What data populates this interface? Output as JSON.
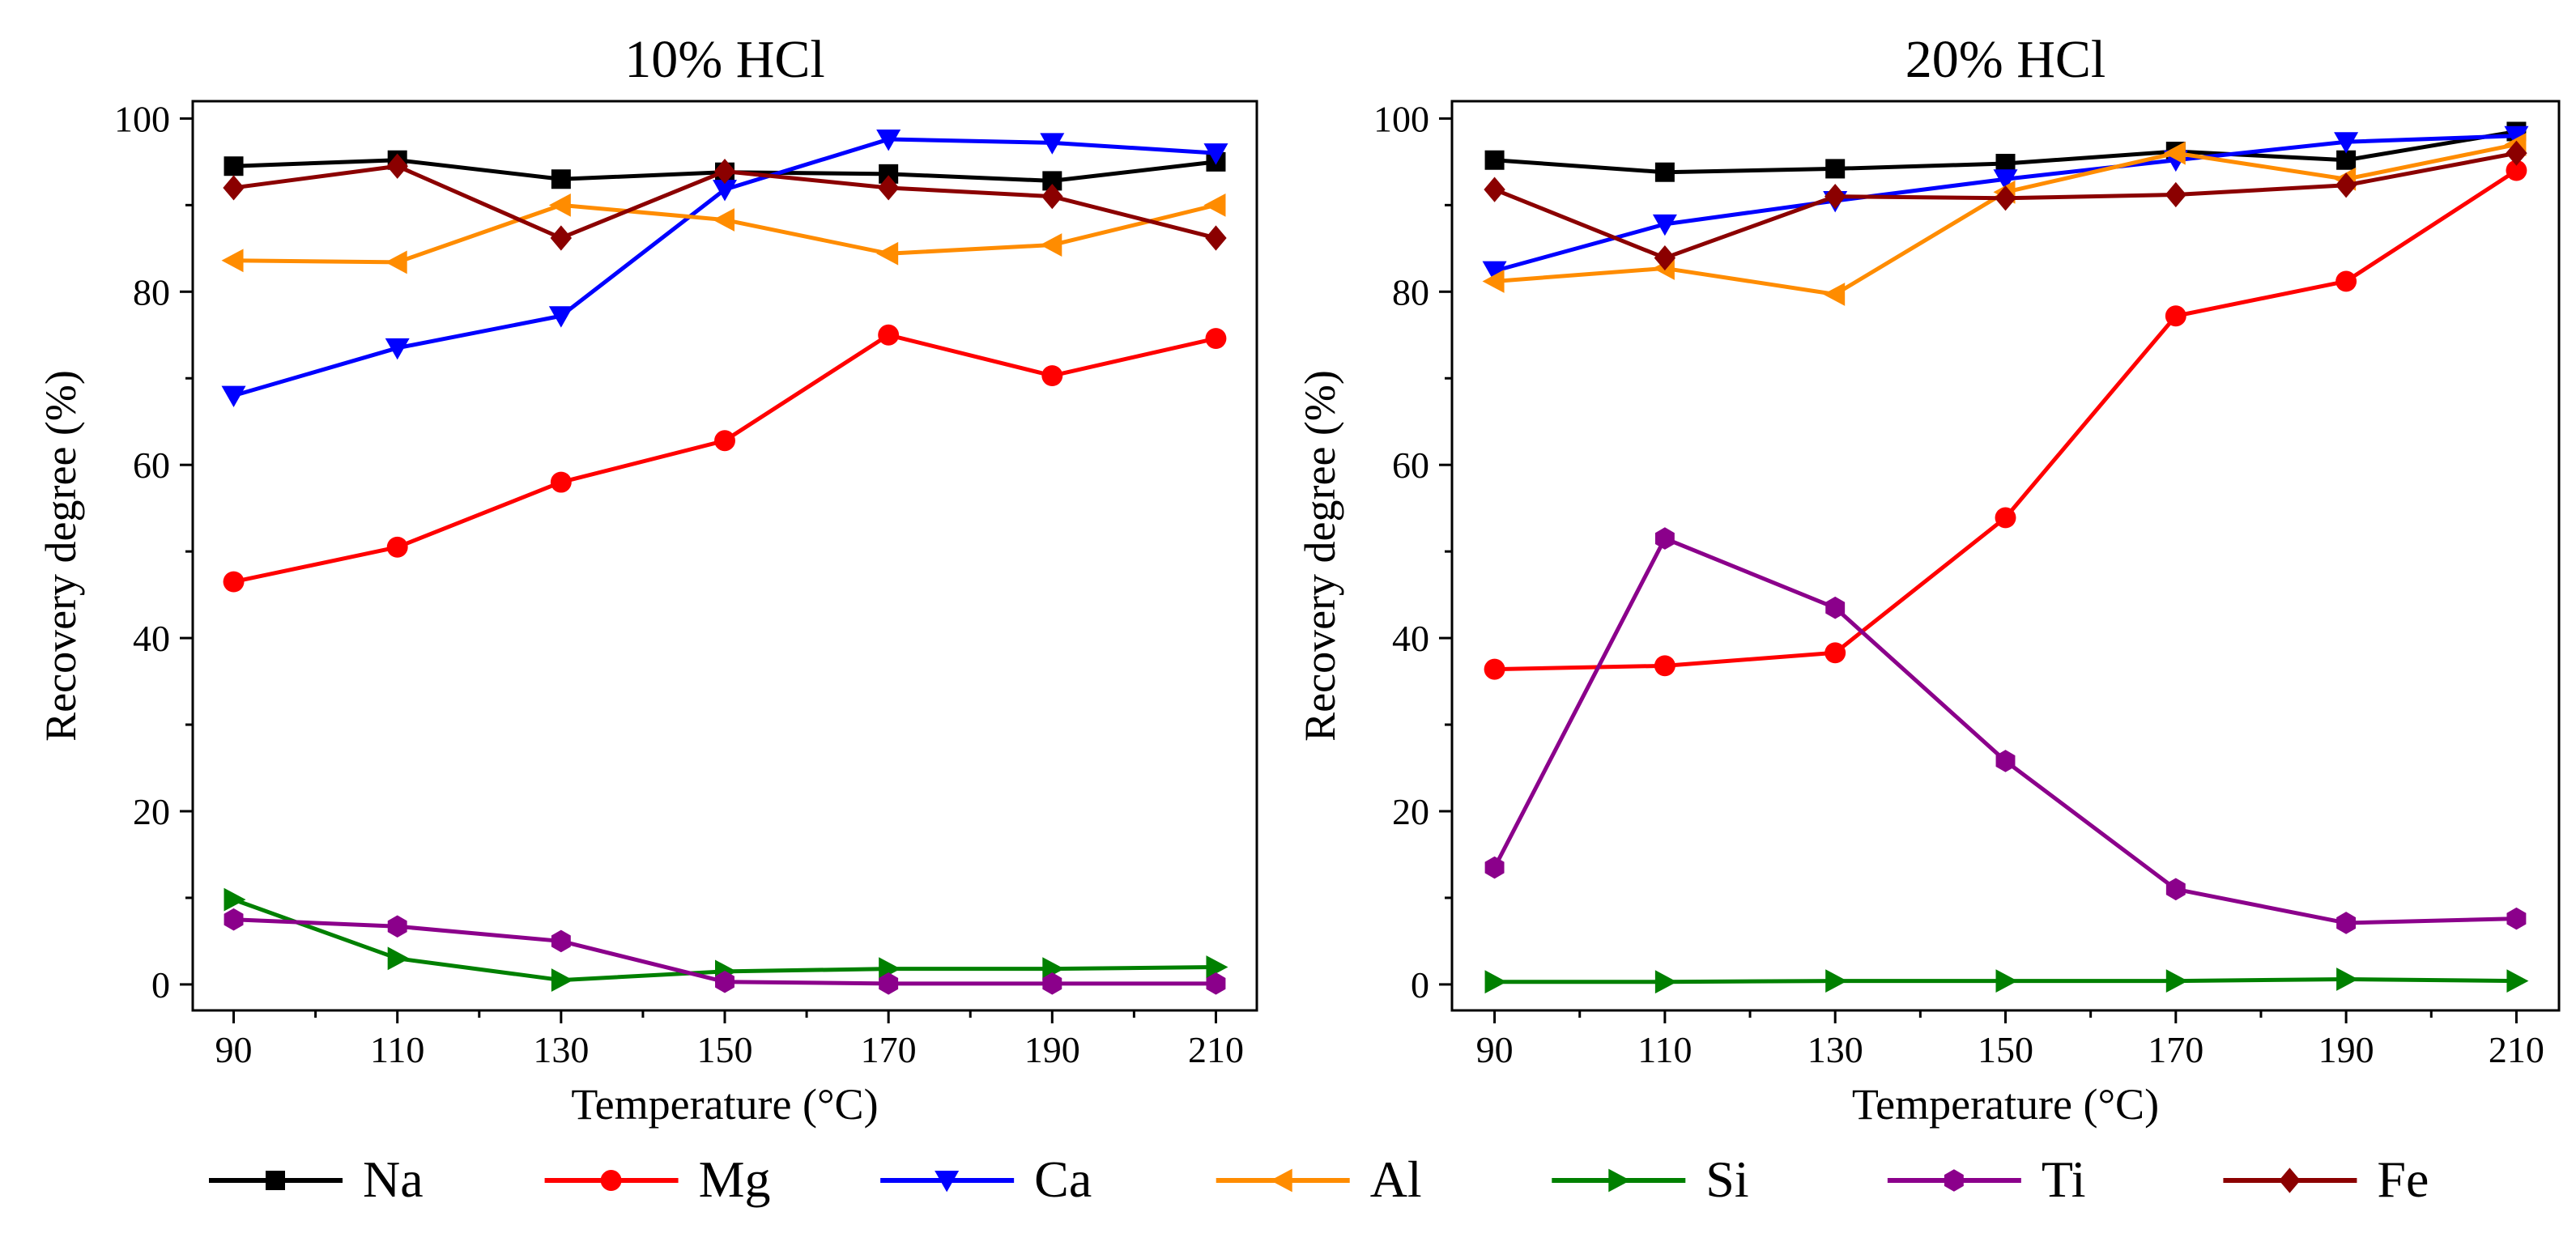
{
  "chart_data": [
    {
      "type": "line",
      "title": "10% HCl",
      "xlabel": "Temperature (°C)",
      "ylabel": "Recovery degree (%)",
      "x": [
        90,
        110,
        130,
        150,
        170,
        190,
        210
      ],
      "xlim": [
        85,
        215
      ],
      "ylim": [
        -3,
        102
      ],
      "xticks": [
        "90",
        "110",
        "130",
        "150",
        "170",
        "190",
        "210"
      ],
      "yticks": [
        "0",
        "20",
        "40",
        "60",
        "80",
        "100"
      ],
      "series": [
        {
          "name": "Na",
          "values": [
            94.5,
            95.2,
            93.0,
            93.8,
            93.6,
            92.8,
            95.0
          ]
        },
        {
          "name": "Mg",
          "values": [
            46.5,
            50.5,
            58.0,
            62.8,
            75.0,
            70.3,
            74.6
          ]
        },
        {
          "name": "Ca",
          "values": [
            68.0,
            73.5,
            77.2,
            91.8,
            97.6,
            97.2,
            96.0
          ]
        },
        {
          "name": "Al",
          "values": [
            83.6,
            83.4,
            90.0,
            88.3,
            84.4,
            85.4,
            90.0
          ]
        },
        {
          "name": "Si",
          "values": [
            9.8,
            3.0,
            0.5,
            1.5,
            1.8,
            1.8,
            2.0
          ]
        },
        {
          "name": "Ti",
          "values": [
            7.5,
            6.7,
            5.0,
            0.3,
            0.1,
            0.1,
            0.1
          ]
        },
        {
          "name": "Fe",
          "values": [
            92.0,
            94.5,
            86.2,
            93.9,
            92.0,
            91.0,
            86.2
          ]
        }
      ]
    },
    {
      "type": "line",
      "title": "20% HCl",
      "xlabel": "Temperature (°C)",
      "ylabel": "Recovery degree (%)",
      "x": [
        90,
        110,
        130,
        150,
        170,
        190,
        210
      ],
      "xlim": [
        85,
        215
      ],
      "ylim": [
        -3,
        102
      ],
      "xticks": [
        "90",
        "110",
        "130",
        "150",
        "170",
        "190",
        "210"
      ],
      "yticks": [
        "0",
        "20",
        "40",
        "60",
        "80",
        "100"
      ],
      "series": [
        {
          "name": "Na",
          "values": [
            95.2,
            93.8,
            94.2,
            94.8,
            96.2,
            95.2,
            98.5
          ]
        },
        {
          "name": "Mg",
          "values": [
            36.4,
            36.8,
            38.3,
            53.9,
            77.2,
            81.2,
            94.0
          ]
        },
        {
          "name": "Ca",
          "values": [
            82.4,
            87.8,
            90.5,
            93.0,
            95.2,
            97.3,
            98.0
          ]
        },
        {
          "name": "Al",
          "values": [
            81.2,
            82.7,
            79.7,
            91.5,
            96.0,
            93.0,
            97.0
          ]
        },
        {
          "name": "Si",
          "values": [
            0.3,
            0.3,
            0.4,
            0.4,
            0.4,
            0.6,
            0.4
          ]
        },
        {
          "name": "Ti",
          "values": [
            13.5,
            51.5,
            43.5,
            25.8,
            11.0,
            7.1,
            7.6
          ]
        },
        {
          "name": "Fe",
          "values": [
            91.8,
            83.9,
            91.0,
            90.8,
            91.2,
            92.3,
            96.0
          ]
        }
      ]
    }
  ],
  "legend": [
    {
      "name": "Na",
      "color": "#000000",
      "marker": "square"
    },
    {
      "name": "Mg",
      "color": "#ff0000",
      "marker": "circle"
    },
    {
      "name": "Ca",
      "color": "#0000ff",
      "marker": "triangle-down"
    },
    {
      "name": "Al",
      "color": "#ff8c00",
      "marker": "triangle-left"
    },
    {
      "name": "Si",
      "color": "#008000",
      "marker": "triangle-right"
    },
    {
      "name": "Ti",
      "color": "#8b008b",
      "marker": "hexagon"
    },
    {
      "name": "Fe",
      "color": "#8b0000",
      "marker": "diamond"
    }
  ]
}
